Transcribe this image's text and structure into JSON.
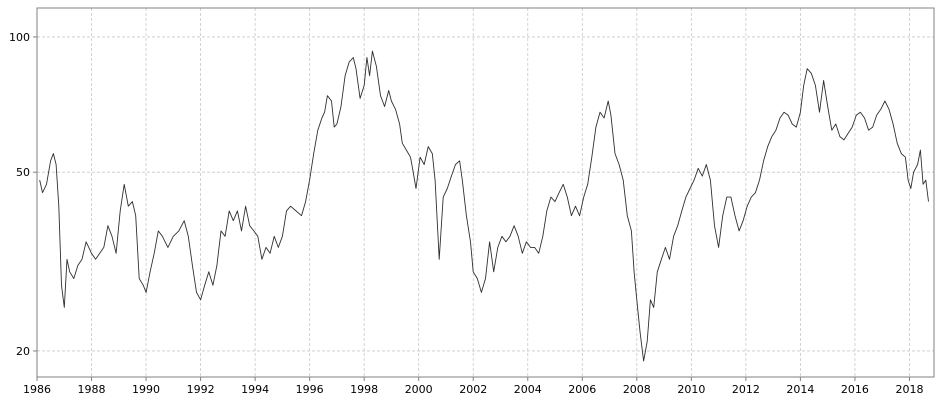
{
  "chart_data": {
    "type": "line",
    "title": "",
    "xlabel": "",
    "ylabel": "",
    "y_scale": "log",
    "xlim": [
      1986.0,
      2018.9
    ],
    "ylim": [
      17.5,
      116
    ],
    "grid": true,
    "y_ticks": [
      20,
      50,
      100
    ],
    "y_tick_labels": [
      "20",
      "50",
      "100"
    ],
    "x_ticks": [
      1986,
      1988,
      1990,
      1992,
      1994,
      1996,
      1998,
      2000,
      2002,
      2004,
      2006,
      2008,
      2010,
      2012,
      2014,
      2016,
      2018
    ],
    "x_tick_labels": [
      "1986",
      "1988",
      "1990",
      "1992",
      "1994",
      "1996",
      "1998",
      "2000",
      "2002",
      "2004",
      "2006",
      "2008",
      "2010",
      "2012",
      "2014",
      "2016",
      "2018"
    ],
    "colors": {
      "line": "#303030",
      "frame": "#808080",
      "grid": "#c8c8c8"
    },
    "series": [
      {
        "points": [
          [
            1986.1,
            48
          ],
          [
            1986.2,
            45
          ],
          [
            1986.35,
            47
          ],
          [
            1986.5,
            53
          ],
          [
            1986.6,
            55
          ],
          [
            1986.7,
            52
          ],
          [
            1986.8,
            42
          ],
          [
            1986.9,
            28
          ],
          [
            1987.0,
            25
          ],
          [
            1987.1,
            32
          ],
          [
            1987.2,
            30
          ],
          [
            1987.35,
            29
          ],
          [
            1987.5,
            31
          ],
          [
            1987.65,
            32
          ],
          [
            1987.8,
            35
          ],
          [
            1987.9,
            34
          ],
          [
            1988.0,
            33
          ],
          [
            1988.15,
            32
          ],
          [
            1988.3,
            33
          ],
          [
            1988.45,
            34
          ],
          [
            1988.6,
            38
          ],
          [
            1988.75,
            36
          ],
          [
            1988.9,
            33
          ],
          [
            1989.05,
            41
          ],
          [
            1989.2,
            47
          ],
          [
            1989.35,
            42
          ],
          [
            1989.5,
            43
          ],
          [
            1989.62,
            40
          ],
          [
            1989.75,
            29
          ],
          [
            1989.9,
            28
          ],
          [
            1990.0,
            27
          ],
          [
            1990.15,
            30
          ],
          [
            1990.3,
            33
          ],
          [
            1990.45,
            37
          ],
          [
            1990.6,
            36
          ],
          [
            1990.8,
            34
          ],
          [
            1991.0,
            36
          ],
          [
            1991.2,
            37
          ],
          [
            1991.4,
            39
          ],
          [
            1991.55,
            36
          ],
          [
            1991.7,
            31
          ],
          [
            1991.85,
            27
          ],
          [
            1992.0,
            26
          ],
          [
            1992.15,
            28
          ],
          [
            1992.3,
            30
          ],
          [
            1992.45,
            28
          ],
          [
            1992.6,
            31
          ],
          [
            1992.75,
            37
          ],
          [
            1992.9,
            36
          ],
          [
            1993.05,
            41
          ],
          [
            1993.2,
            39
          ],
          [
            1993.35,
            41
          ],
          [
            1993.5,
            37
          ],
          [
            1993.65,
            42
          ],
          [
            1993.8,
            38
          ],
          [
            1993.95,
            37
          ],
          [
            1994.1,
            36
          ],
          [
            1994.25,
            32
          ],
          [
            1994.4,
            34
          ],
          [
            1994.55,
            33
          ],
          [
            1994.7,
            36
          ],
          [
            1994.85,
            34
          ],
          [
            1995.0,
            36
          ],
          [
            1995.15,
            41
          ],
          [
            1995.3,
            42
          ],
          [
            1995.5,
            41
          ],
          [
            1995.7,
            40
          ],
          [
            1995.85,
            43
          ],
          [
            1996.0,
            48
          ],
          [
            1996.15,
            55
          ],
          [
            1996.3,
            62
          ],
          [
            1996.45,
            66
          ],
          [
            1996.55,
            68
          ],
          [
            1996.65,
            74
          ],
          [
            1996.8,
            72
          ],
          [
            1996.9,
            63
          ],
          [
            1997.0,
            64
          ],
          [
            1997.15,
            70
          ],
          [
            1997.3,
            82
          ],
          [
            1997.45,
            88
          ],
          [
            1997.6,
            90
          ],
          [
            1997.7,
            85
          ],
          [
            1997.85,
            73
          ],
          [
            1998.0,
            78
          ],
          [
            1998.1,
            90
          ],
          [
            1998.2,
            82
          ],
          [
            1998.3,
            93
          ],
          [
            1998.45,
            86
          ],
          [
            1998.6,
            74
          ],
          [
            1998.75,
            70
          ],
          [
            1998.9,
            76
          ],
          [
            1999.0,
            72
          ],
          [
            1999.15,
            69
          ],
          [
            1999.3,
            64
          ],
          [
            1999.4,
            58
          ],
          [
            1999.55,
            56
          ],
          [
            1999.7,
            54
          ],
          [
            1999.8,
            50
          ],
          [
            1999.9,
            46
          ],
          [
            2000.05,
            54
          ],
          [
            2000.2,
            52
          ],
          [
            2000.35,
            57
          ],
          [
            2000.5,
            55
          ],
          [
            2000.6,
            48
          ],
          [
            2000.75,
            32
          ],
          [
            2000.9,
            44
          ],
          [
            2001.05,
            46
          ],
          [
            2001.2,
            49
          ],
          [
            2001.35,
            52
          ],
          [
            2001.5,
            53
          ],
          [
            2001.6,
            48
          ],
          [
            2001.75,
            40
          ],
          [
            2001.9,
            35
          ],
          [
            2002.0,
            30
          ],
          [
            2002.15,
            29
          ],
          [
            2002.3,
            27
          ],
          [
            2002.45,
            29
          ],
          [
            2002.6,
            35
          ],
          [
            2002.75,
            30
          ],
          [
            2002.9,
            34
          ],
          [
            2003.05,
            36
          ],
          [
            2003.2,
            35
          ],
          [
            2003.35,
            36
          ],
          [
            2003.5,
            38
          ],
          [
            2003.65,
            36
          ],
          [
            2003.8,
            33
          ],
          [
            2003.95,
            35
          ],
          [
            2004.1,
            34
          ],
          [
            2004.25,
            34
          ],
          [
            2004.4,
            33
          ],
          [
            2004.55,
            36
          ],
          [
            2004.7,
            41
          ],
          [
            2004.85,
            44
          ],
          [
            2005.0,
            43
          ],
          [
            2005.15,
            45
          ],
          [
            2005.3,
            47
          ],
          [
            2005.45,
            44
          ],
          [
            2005.6,
            40
          ],
          [
            2005.75,
            42
          ],
          [
            2005.9,
            40
          ],
          [
            2006.05,
            44
          ],
          [
            2006.2,
            47
          ],
          [
            2006.35,
            54
          ],
          [
            2006.5,
            63
          ],
          [
            2006.65,
            68
          ],
          [
            2006.8,
            66
          ],
          [
            2006.95,
            72
          ],
          [
            2007.05,
            67
          ],
          [
            2007.2,
            55
          ],
          [
            2007.35,
            52
          ],
          [
            2007.5,
            48
          ],
          [
            2007.65,
            40
          ],
          [
            2007.8,
            37
          ],
          [
            2007.9,
            30
          ],
          [
            2008.0,
            26
          ],
          [
            2008.12,
            22
          ],
          [
            2008.25,
            19
          ],
          [
            2008.38,
            21
          ],
          [
            2008.5,
            26
          ],
          [
            2008.62,
            25
          ],
          [
            2008.75,
            30
          ],
          [
            2008.9,
            32
          ],
          [
            2009.05,
            34
          ],
          [
            2009.2,
            32
          ],
          [
            2009.35,
            36
          ],
          [
            2009.5,
            38
          ],
          [
            2009.65,
            41
          ],
          [
            2009.8,
            44
          ],
          [
            2009.95,
            46
          ],
          [
            2010.1,
            48
          ],
          [
            2010.25,
            51
          ],
          [
            2010.4,
            49
          ],
          [
            2010.55,
            52
          ],
          [
            2010.7,
            48
          ],
          [
            2010.85,
            38
          ],
          [
            2011.0,
            34
          ],
          [
            2011.15,
            40
          ],
          [
            2011.3,
            44
          ],
          [
            2011.45,
            44
          ],
          [
            2011.6,
            40
          ],
          [
            2011.75,
            37
          ],
          [
            2011.9,
            39
          ],
          [
            2012.05,
            42
          ],
          [
            2012.2,
            44
          ],
          [
            2012.35,
            45
          ],
          [
            2012.5,
            48
          ],
          [
            2012.65,
            53
          ],
          [
            2012.8,
            57
          ],
          [
            2012.95,
            60
          ],
          [
            2013.1,
            62
          ],
          [
            2013.25,
            66
          ],
          [
            2013.4,
            68
          ],
          [
            2013.55,
            67
          ],
          [
            2013.7,
            64
          ],
          [
            2013.85,
            63
          ],
          [
            2014.0,
            68
          ],
          [
            2014.12,
            78
          ],
          [
            2014.25,
            85
          ],
          [
            2014.4,
            83
          ],
          [
            2014.55,
            78
          ],
          [
            2014.7,
            68
          ],
          [
            2014.85,
            80
          ],
          [
            2015.0,
            70
          ],
          [
            2015.15,
            62
          ],
          [
            2015.3,
            64
          ],
          [
            2015.45,
            60
          ],
          [
            2015.6,
            59
          ],
          [
            2015.75,
            61
          ],
          [
            2015.9,
            63
          ],
          [
            2016.05,
            67
          ],
          [
            2016.2,
            68
          ],
          [
            2016.35,
            66
          ],
          [
            2016.5,
            62
          ],
          [
            2016.65,
            63
          ],
          [
            2016.8,
            67
          ],
          [
            2016.95,
            69
          ],
          [
            2017.1,
            72
          ],
          [
            2017.25,
            69
          ],
          [
            2017.4,
            64
          ],
          [
            2017.55,
            58
          ],
          [
            2017.7,
            55
          ],
          [
            2017.85,
            54
          ],
          [
            2017.95,
            48
          ],
          [
            2018.05,
            46
          ],
          [
            2018.15,
            50
          ],
          [
            2018.3,
            52
          ],
          [
            2018.4,
            56
          ],
          [
            2018.5,
            47
          ],
          [
            2018.6,
            48
          ],
          [
            2018.7,
            43
          ]
        ]
      }
    ]
  }
}
